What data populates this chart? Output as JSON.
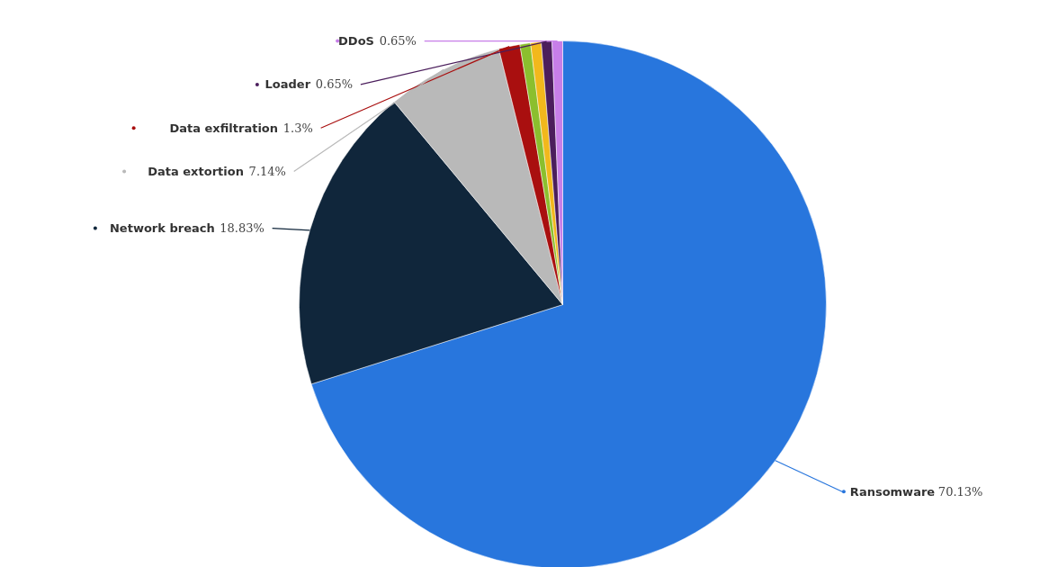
{
  "chart_data": {
    "type": "pie",
    "categories": [
      "Ransomware",
      "Network breach",
      "Data extortion",
      "Data exfiltration",
      null,
      null,
      "Loader",
      "DDoS"
    ],
    "values": [
      70.13,
      18.83,
      7.14,
      1.3,
      0.65,
      0.65,
      0.65,
      0.65
    ],
    "value_labels": [
      "70.13%",
      "18.83%",
      "7.14%",
      "1.3%",
      null,
      null,
      "0.65%",
      "0.65%"
    ],
    "colors": [
      "#2876dd",
      "#10263b",
      "#b9b9b9",
      "#a90f0f",
      "#8bbf2e",
      "#f2b81c",
      "#4b1e5c",
      "#c77ee8"
    ]
  }
}
